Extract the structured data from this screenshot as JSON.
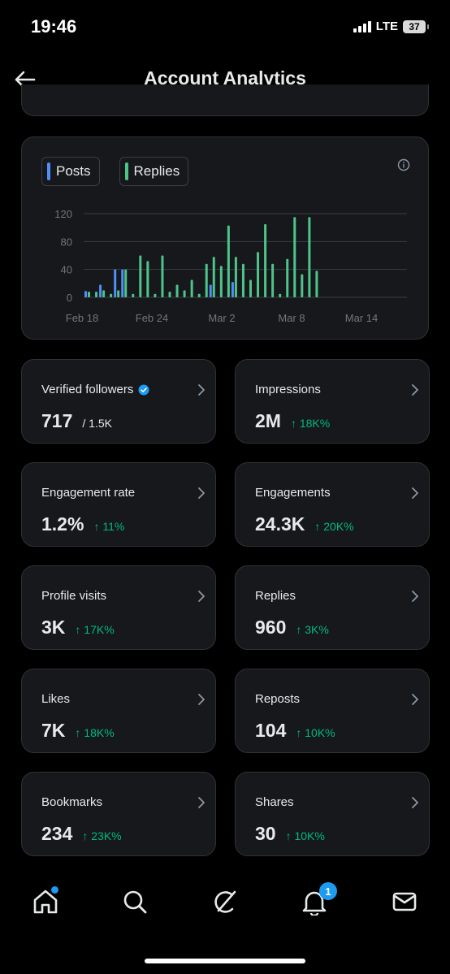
{
  "status_bar": {
    "time": "19:46",
    "network": "LTE",
    "battery": "37"
  },
  "header": {
    "title": "Account Analytics"
  },
  "chart": {
    "legend": [
      {
        "label": "Posts",
        "color": "#4f8ff7"
      },
      {
        "label": "Replies",
        "color": "#4ec489"
      }
    ]
  },
  "chart_data": {
    "type": "bar",
    "x_tick_labels": [
      "Feb 18",
      "Feb 24",
      "Mar 2",
      "Mar 8",
      "Mar 14"
    ],
    "y_tick_labels": [
      "120",
      "80",
      "40",
      "0"
    ],
    "ylim": [
      0,
      120
    ],
    "grid": true,
    "legend_position": "top-left",
    "series": [
      {
        "name": "Posts",
        "color": "#4f8ff7",
        "values": [
          9,
          0,
          18,
          0,
          40,
          40,
          0,
          0,
          0,
          0,
          0,
          0,
          0,
          0,
          0,
          0,
          0,
          18,
          0,
          0,
          22,
          0,
          0,
          0,
          0,
          0,
          0,
          0,
          0,
          0,
          0,
          0,
          0,
          0,
          0,
          0,
          0,
          0,
          0,
          0,
          0,
          0,
          0,
          0
        ]
      },
      {
        "name": "Replies",
        "color": "#4ec489",
        "values": [
          8,
          8,
          10,
          5,
          10,
          40,
          5,
          60,
          52,
          5,
          60,
          8,
          18,
          10,
          25,
          5,
          48,
          58,
          45,
          103,
          58,
          48,
          25,
          65,
          105,
          48,
          5,
          55,
          115,
          33,
          115,
          38,
          0,
          0,
          0,
          0,
          0,
          0,
          0,
          0,
          0,
          0,
          0,
          0
        ]
      }
    ]
  },
  "metrics": [
    {
      "label": "Verified followers",
      "value": "717",
      "total": "/ 1.5K",
      "delta": ""
    },
    {
      "label": "Impressions",
      "value": "2M",
      "delta": "↑ 18K%"
    },
    {
      "label": "Engagement rate",
      "value": "1.2%",
      "delta": "↑ 11%"
    },
    {
      "label": "Engagements",
      "value": "24.3K",
      "delta": "↑ 20K%"
    },
    {
      "label": "Profile visits",
      "value": "3K",
      "delta": "↑ 17K%"
    },
    {
      "label": "Replies",
      "value": "960",
      "delta": "↑ 3K%"
    },
    {
      "label": "Likes",
      "value": "7K",
      "delta": "↑ 18K%"
    },
    {
      "label": "Reposts",
      "value": "104",
      "delta": "↑ 10K%"
    },
    {
      "label": "Bookmarks",
      "value": "234",
      "delta": "↑ 23K%"
    },
    {
      "label": "Shares",
      "value": "30",
      "delta": "↑ 10K%"
    }
  ],
  "nav": {
    "items": [
      "home-icon",
      "search-icon",
      "grok-icon",
      "notifications-icon",
      "messages-icon"
    ],
    "notification_count": "1"
  }
}
